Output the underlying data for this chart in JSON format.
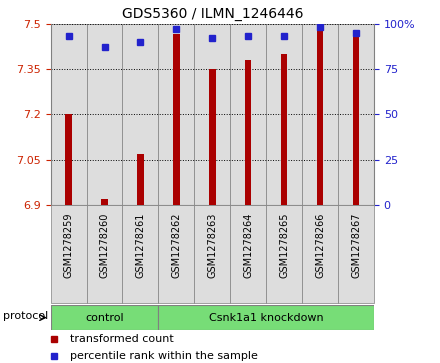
{
  "title": "GDS5360 / ILMN_1246446",
  "samples": [
    "GSM1278259",
    "GSM1278260",
    "GSM1278261",
    "GSM1278262",
    "GSM1278263",
    "GSM1278264",
    "GSM1278265",
    "GSM1278266",
    "GSM1278267"
  ],
  "red_values": [
    7.2,
    6.92,
    7.07,
    7.465,
    7.35,
    7.38,
    7.4,
    7.5,
    7.465
  ],
  "blue_values": [
    93,
    87,
    90,
    97,
    92,
    93,
    93,
    98,
    95
  ],
  "ylim_left": [
    6.9,
    7.5
  ],
  "ylim_right": [
    0,
    100
  ],
  "yticks_left": [
    6.9,
    7.05,
    7.2,
    7.35,
    7.5
  ],
  "yticks_right": [
    0,
    25,
    50,
    75,
    100
  ],
  "bar_color": "#aa0000",
  "dot_color": "#2222cc",
  "bar_width": 0.18,
  "control_samples": 3,
  "control_label": "control",
  "knockdown_label": "Csnk1a1 knockdown",
  "protocol_label": "protocol",
  "legend_red": "transformed count",
  "legend_blue": "percentile rank within the sample",
  "bar_bottom": 6.9,
  "cell_bg": "#dddddd",
  "green_bg": "#77dd77"
}
